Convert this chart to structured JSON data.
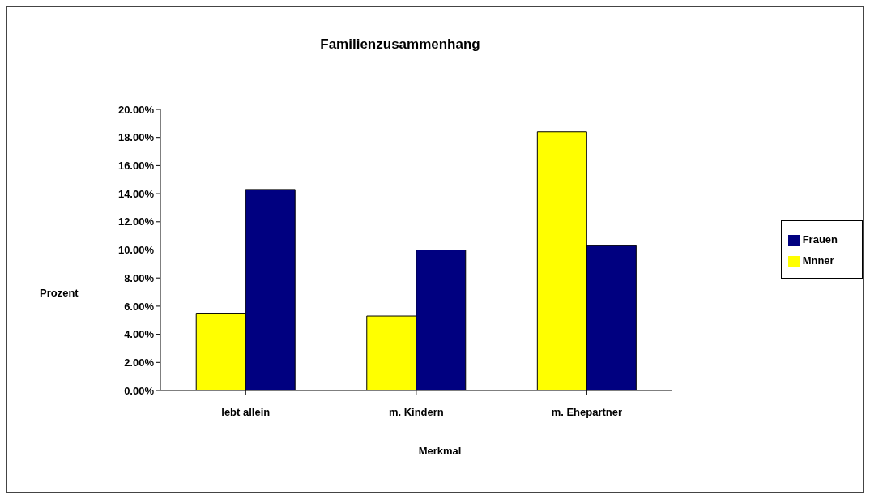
{
  "chart_data": {
    "type": "bar",
    "title": "Familienzusammenhang",
    "xlabel": "Merkmal",
    "ylabel": "Prozent",
    "categories": [
      "lebt allein",
      "m. Kindern",
      "m. Ehepartner"
    ],
    "series": [
      {
        "name": "Mnner",
        "color": "#ffff00",
        "values": [
          5.5,
          5.3,
          18.4
        ]
      },
      {
        "name": "Frauen",
        "color": "#000080",
        "values": [
          14.3,
          10.0,
          10.3
        ]
      }
    ],
    "ylim": [
      0,
      20
    ],
    "yticks": [
      {
        "value": 0,
        "label": "0.00%"
      },
      {
        "value": 2,
        "label": "2.00%"
      },
      {
        "value": 4,
        "label": "4.00%"
      },
      {
        "value": 6,
        "label": "6.00%"
      },
      {
        "value": 8,
        "label": "8.00%"
      },
      {
        "value": 10,
        "label": "10.00%"
      },
      {
        "value": 12,
        "label": "12.00%"
      },
      {
        "value": 14,
        "label": "14.00%"
      },
      {
        "value": 16,
        "label": "16.00%"
      },
      {
        "value": 18,
        "label": "18.00%"
      },
      {
        "value": 20,
        "label": "20.00%"
      }
    ],
    "grid": false,
    "legend": "right"
  }
}
